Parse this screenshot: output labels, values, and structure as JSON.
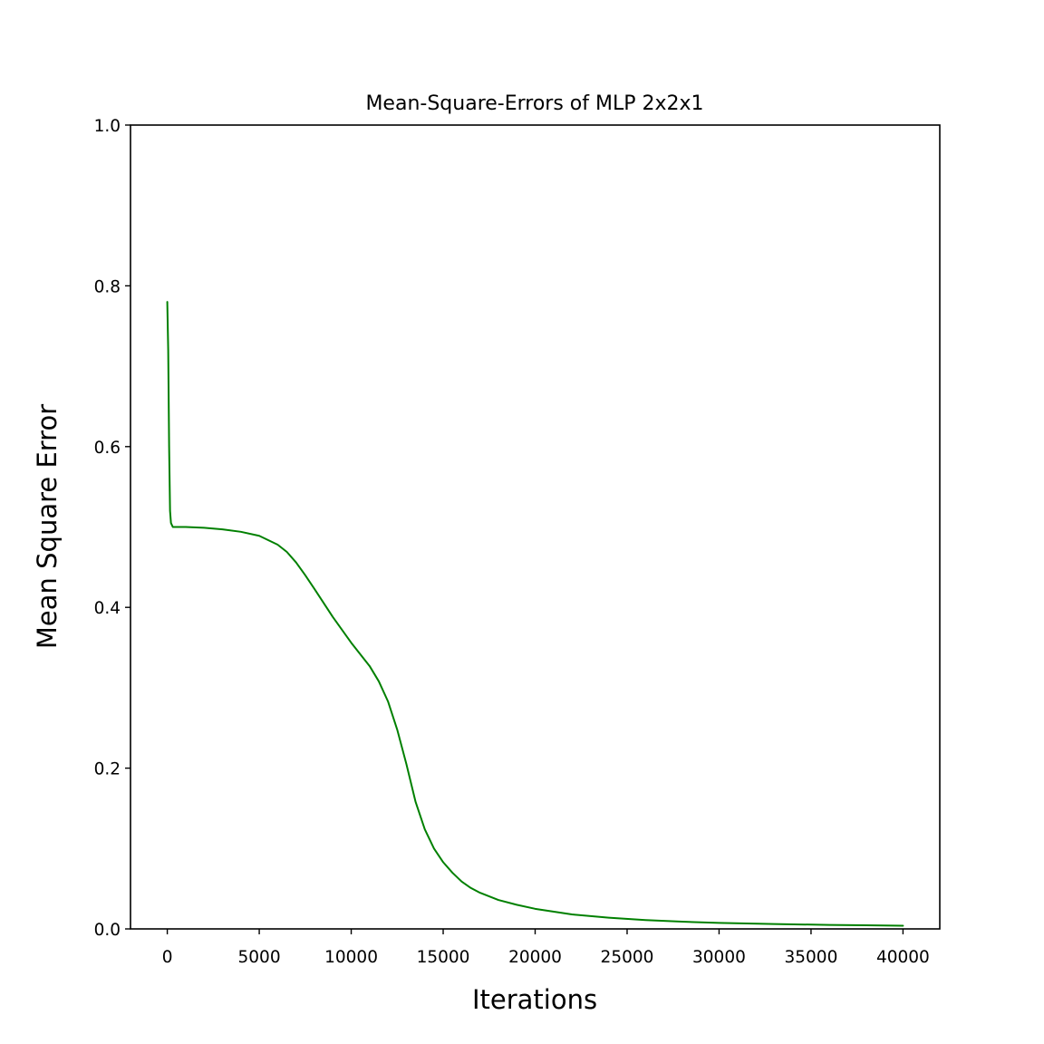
{
  "chart_data": {
    "type": "line",
    "title": "Mean-Square-Errors of MLP 2x2x1",
    "xlabel": "Iterations",
    "ylabel": "Mean Square Error",
    "xlim": [
      -2000,
      42000
    ],
    "ylim": [
      0.0,
      1.0
    ],
    "x_ticks": [
      0,
      5000,
      10000,
      15000,
      20000,
      25000,
      30000,
      35000,
      40000
    ],
    "x_tick_labels": [
      "0",
      "5000",
      "10000",
      "15000",
      "20000",
      "25000",
      "30000",
      "35000",
      "40000"
    ],
    "y_ticks": [
      0.0,
      0.2,
      0.4,
      0.6,
      0.8,
      1.0
    ],
    "y_tick_labels": [
      "0.0",
      "0.2",
      "0.4",
      "0.6",
      "0.8",
      "1.0"
    ],
    "grid": false,
    "series": [
      {
        "color": "#008000",
        "x": [
          0,
          50,
          100,
          150,
          200,
          300,
          500,
          1000,
          2000,
          3000,
          4000,
          5000,
          6000,
          6500,
          7000,
          7500,
          8000,
          9000,
          10000,
          11000,
          11500,
          12000,
          12500,
          13000,
          13500,
          14000,
          14500,
          15000,
          15500,
          16000,
          16500,
          17000,
          18000,
          19000,
          20000,
          22000,
          24000,
          26000,
          28000,
          30000,
          33000,
          36000,
          38000,
          40000
        ],
        "y": [
          0.78,
          0.72,
          0.6,
          0.52,
          0.505,
          0.5,
          0.5,
          0.5,
          0.499,
          0.497,
          0.494,
          0.489,
          0.478,
          0.469,
          0.456,
          0.44,
          0.423,
          0.388,
          0.356,
          0.327,
          0.308,
          0.283,
          0.248,
          0.205,
          0.158,
          0.124,
          0.1,
          0.083,
          0.07,
          0.059,
          0.051,
          0.045,
          0.036,
          0.03,
          0.025,
          0.018,
          0.014,
          0.011,
          0.009,
          0.0075,
          0.006,
          0.005,
          0.0045,
          0.004
        ]
      }
    ]
  }
}
